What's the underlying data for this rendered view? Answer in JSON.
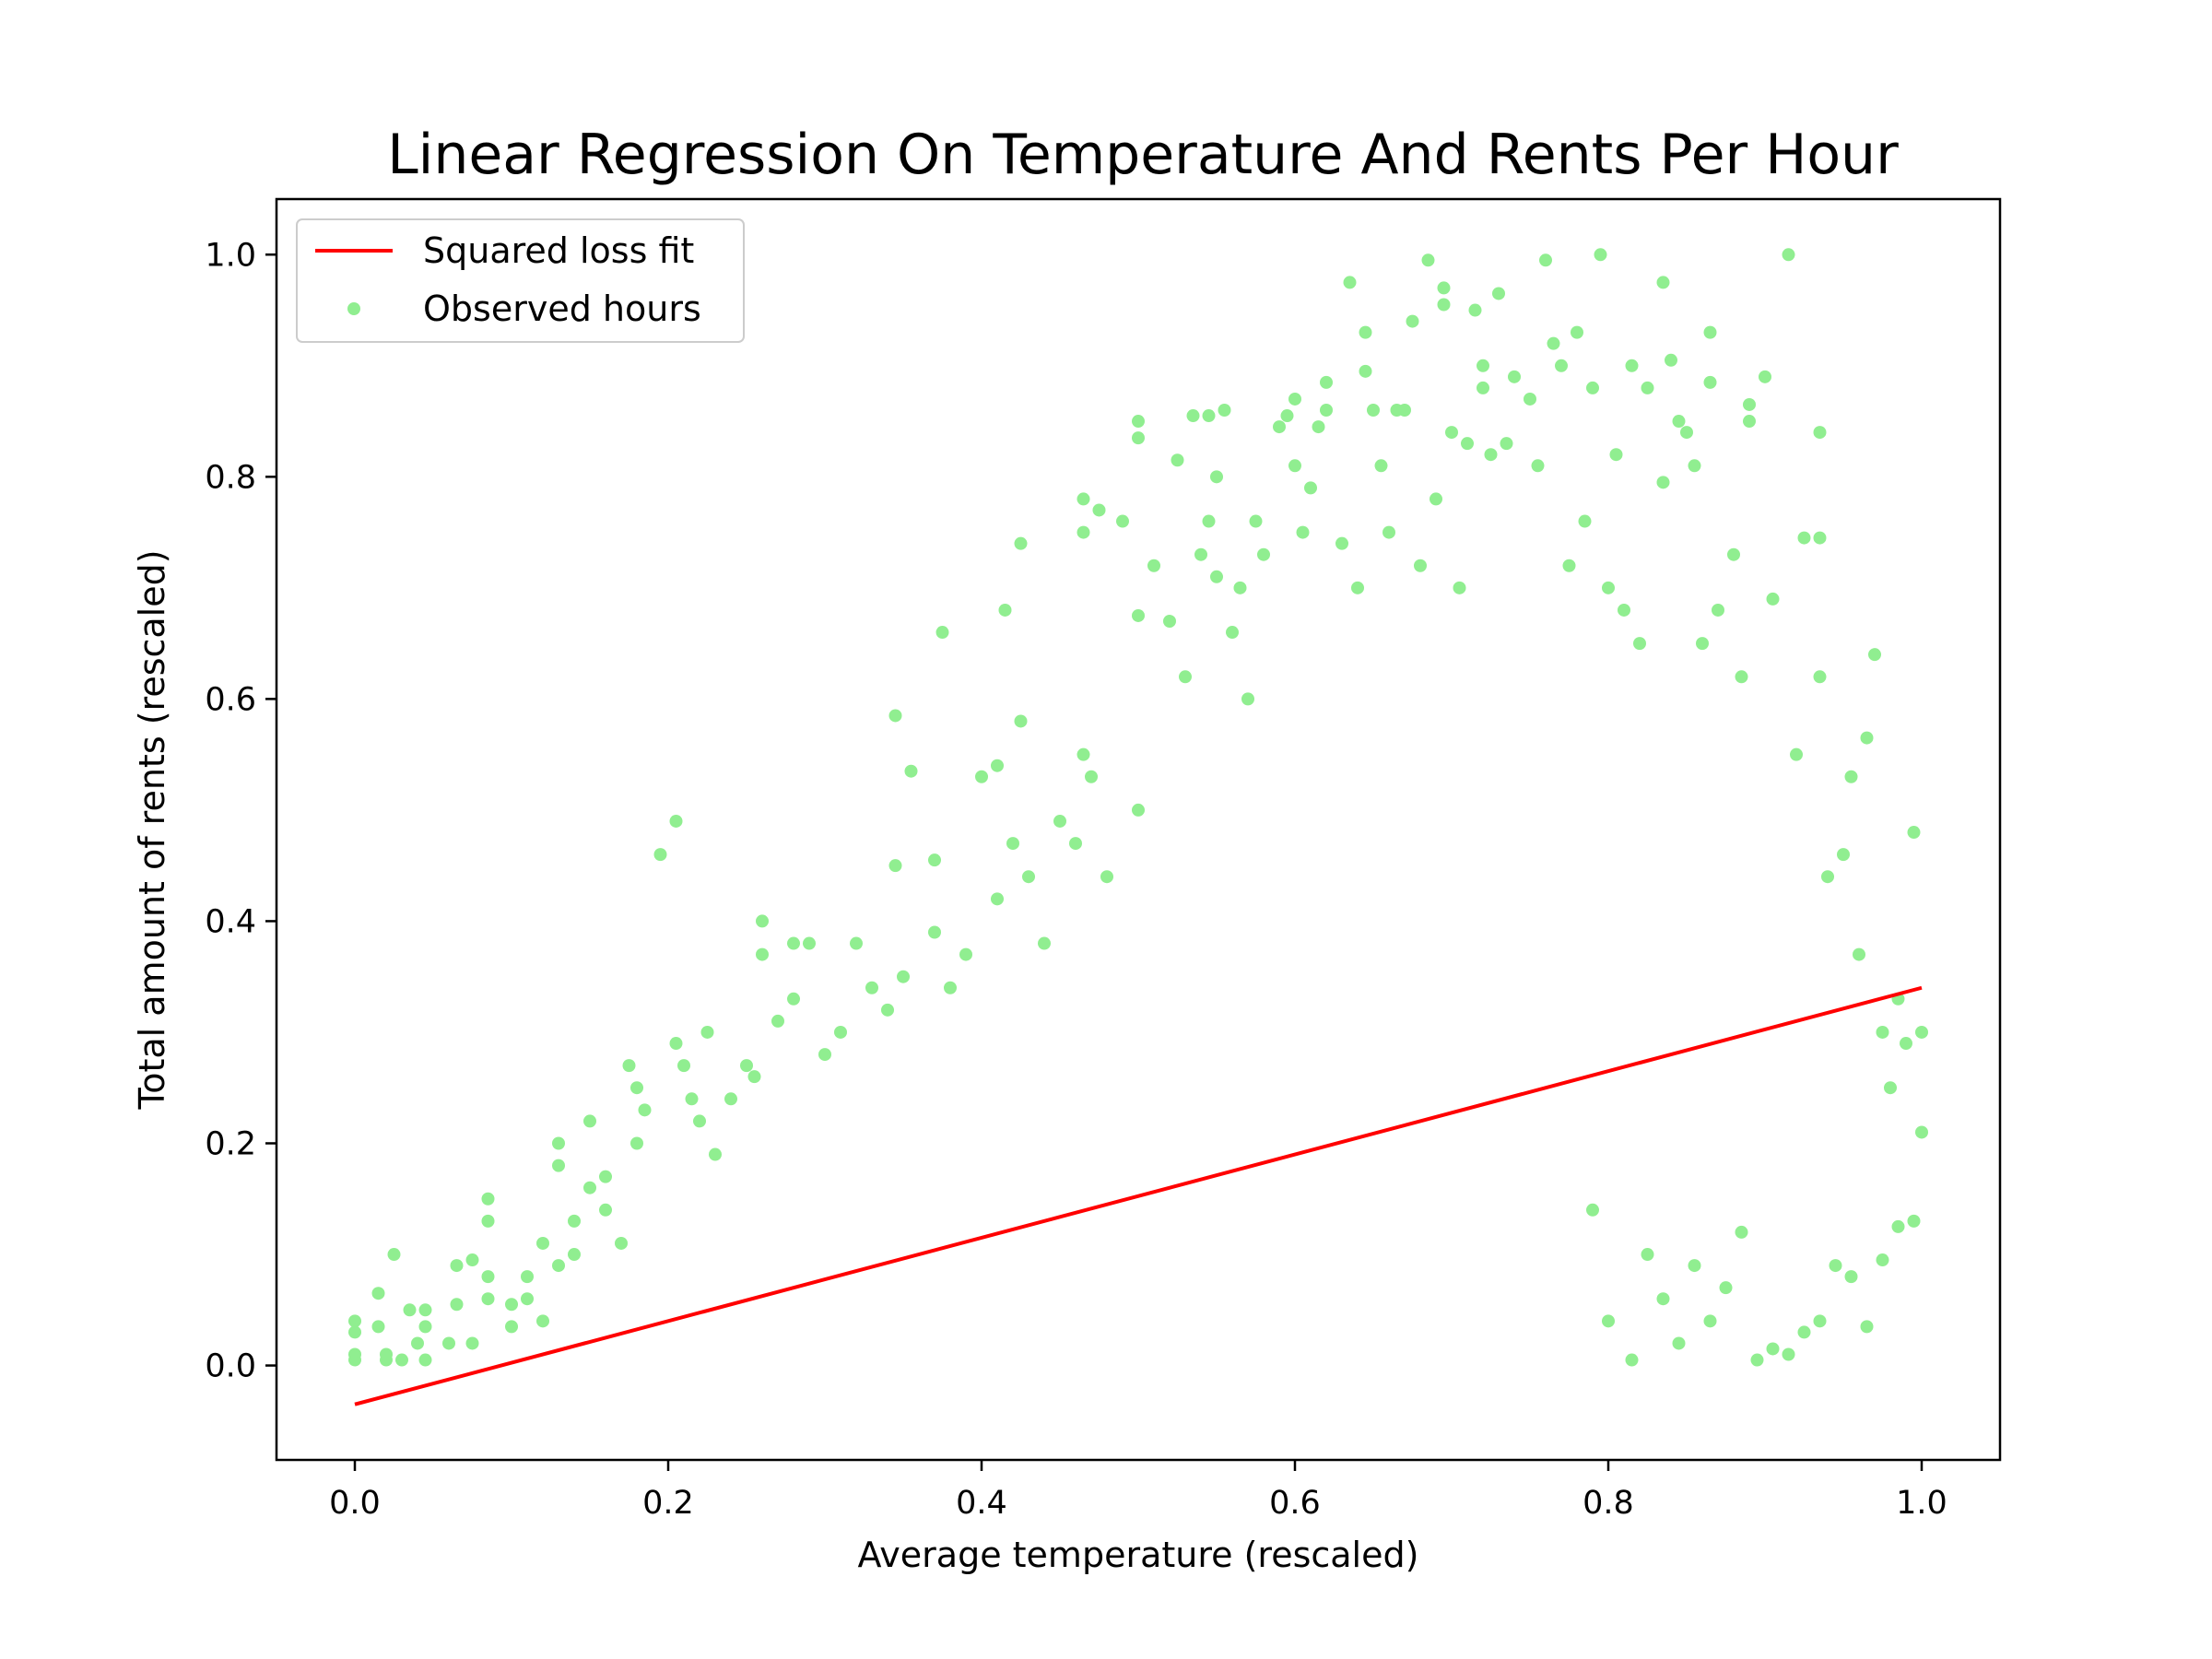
{
  "chart_data": {
    "type": "scatter",
    "title": "Linear Regression On Temperature And Rents Per Hour",
    "xlabel": "Average temperature (rescaled)",
    "ylabel": "Total amount of rents (rescaled)",
    "xlim": [
      -0.05,
      1.05
    ],
    "ylim": [
      -0.085,
      1.05
    ],
    "xticks": [
      "0.0",
      "0.2",
      "0.4",
      "0.6",
      "0.8",
      "1.0"
    ],
    "yticks": [
      "0.0",
      "0.2",
      "0.4",
      "0.6",
      "0.8",
      "1.0"
    ],
    "grid": false,
    "legend_position": "top-left",
    "colors": {
      "fit": "#ff0000",
      "points": "#90ee90"
    },
    "series": [
      {
        "name": "Squared loss fit",
        "kind": "line",
        "x": [
          0.0,
          1.0
        ],
        "y": [
          -0.035,
          0.34
        ]
      },
      {
        "name": "Observed hours",
        "kind": "scatter",
        "points": [
          [
            0.0,
            0.04
          ],
          [
            0.0,
            0.03
          ],
          [
            0.0,
            0.01
          ],
          [
            0.0,
            0.005
          ],
          [
            0.015,
            0.065
          ],
          [
            0.015,
            0.035
          ],
          [
            0.02,
            0.005
          ],
          [
            0.02,
            0.01
          ],
          [
            0.025,
            0.1
          ],
          [
            0.03,
            0.005
          ],
          [
            0.035,
            0.05
          ],
          [
            0.04,
            0.02
          ],
          [
            0.045,
            0.05
          ],
          [
            0.045,
            0.035
          ],
          [
            0.045,
            0.005
          ],
          [
            0.06,
            0.02
          ],
          [
            0.065,
            0.09
          ],
          [
            0.065,
            0.055
          ],
          [
            0.075,
            0.095
          ],
          [
            0.075,
            0.02
          ],
          [
            0.085,
            0.15
          ],
          [
            0.085,
            0.13
          ],
          [
            0.085,
            0.08
          ],
          [
            0.085,
            0.06
          ],
          [
            0.1,
            0.055
          ],
          [
            0.1,
            0.035
          ],
          [
            0.11,
            0.08
          ],
          [
            0.11,
            0.06
          ],
          [
            0.12,
            0.11
          ],
          [
            0.12,
            0.04
          ],
          [
            0.13,
            0.2
          ],
          [
            0.13,
            0.18
          ],
          [
            0.13,
            0.09
          ],
          [
            0.14,
            0.13
          ],
          [
            0.14,
            0.1
          ],
          [
            0.15,
            0.22
          ],
          [
            0.15,
            0.16
          ],
          [
            0.16,
            0.17
          ],
          [
            0.16,
            0.14
          ],
          [
            0.17,
            0.11
          ],
          [
            0.175,
            0.27
          ],
          [
            0.18,
            0.25
          ],
          [
            0.18,
            0.2
          ],
          [
            0.185,
            0.23
          ],
          [
            0.195,
            0.46
          ],
          [
            0.205,
            0.49
          ],
          [
            0.205,
            0.29
          ],
          [
            0.21,
            0.27
          ],
          [
            0.215,
            0.24
          ],
          [
            0.22,
            0.22
          ],
          [
            0.225,
            0.3
          ],
          [
            0.23,
            0.19
          ],
          [
            0.24,
            0.24
          ],
          [
            0.25,
            0.27
          ],
          [
            0.255,
            0.26
          ],
          [
            0.26,
            0.4
          ],
          [
            0.26,
            0.37
          ],
          [
            0.27,
            0.31
          ],
          [
            0.28,
            0.33
          ],
          [
            0.28,
            0.38
          ],
          [
            0.29,
            0.38
          ],
          [
            0.3,
            0.28
          ],
          [
            0.31,
            0.3
          ],
          [
            0.32,
            0.38
          ],
          [
            0.33,
            0.34
          ],
          [
            0.34,
            0.32
          ],
          [
            0.345,
            0.585
          ],
          [
            0.345,
            0.45
          ],
          [
            0.35,
            0.35
          ],
          [
            0.355,
            0.535
          ],
          [
            0.37,
            0.455
          ],
          [
            0.37,
            0.39
          ],
          [
            0.375,
            0.66
          ],
          [
            0.38,
            0.34
          ],
          [
            0.39,
            0.37
          ],
          [
            0.4,
            0.53
          ],
          [
            0.41,
            0.54
          ],
          [
            0.41,
            0.42
          ],
          [
            0.415,
            0.68
          ],
          [
            0.42,
            0.47
          ],
          [
            0.425,
            0.74
          ],
          [
            0.425,
            0.58
          ],
          [
            0.43,
            0.44
          ],
          [
            0.44,
            0.38
          ],
          [
            0.45,
            0.49
          ],
          [
            0.46,
            0.47
          ],
          [
            0.465,
            0.55
          ],
          [
            0.465,
            0.78
          ],
          [
            0.465,
            0.75
          ],
          [
            0.47,
            0.53
          ],
          [
            0.475,
            0.77
          ],
          [
            0.48,
            0.44
          ],
          [
            0.49,
            0.76
          ],
          [
            0.5,
            0.85
          ],
          [
            0.5,
            0.835
          ],
          [
            0.5,
            0.675
          ],
          [
            0.5,
            0.5
          ],
          [
            0.51,
            0.72
          ],
          [
            0.52,
            0.67
          ],
          [
            0.525,
            0.815
          ],
          [
            0.53,
            0.62
          ],
          [
            0.535,
            0.855
          ],
          [
            0.54,
            0.73
          ],
          [
            0.545,
            0.855
          ],
          [
            0.545,
            0.76
          ],
          [
            0.55,
            0.8
          ],
          [
            0.55,
            0.71
          ],
          [
            0.555,
            0.86
          ],
          [
            0.56,
            0.66
          ],
          [
            0.565,
            0.7
          ],
          [
            0.57,
            0.6
          ],
          [
            0.575,
            0.76
          ],
          [
            0.58,
            0.73
          ],
          [
            0.59,
            0.845
          ],
          [
            0.595,
            0.855
          ],
          [
            0.6,
            0.81
          ],
          [
            0.6,
            0.87
          ],
          [
            0.605,
            0.75
          ],
          [
            0.61,
            0.79
          ],
          [
            0.615,
            0.845
          ],
          [
            0.62,
            0.885
          ],
          [
            0.62,
            0.86
          ],
          [
            0.63,
            0.74
          ],
          [
            0.635,
            0.975
          ],
          [
            0.64,
            0.7
          ],
          [
            0.645,
            0.93
          ],
          [
            0.645,
            0.895
          ],
          [
            0.65,
            0.86
          ],
          [
            0.655,
            0.81
          ],
          [
            0.66,
            0.75
          ],
          [
            0.665,
            0.86
          ],
          [
            0.67,
            0.86
          ],
          [
            0.675,
            0.94
          ],
          [
            0.68,
            0.72
          ],
          [
            0.685,
            0.995
          ],
          [
            0.69,
            0.78
          ],
          [
            0.695,
            0.97
          ],
          [
            0.695,
            0.955
          ],
          [
            0.7,
            0.84
          ],
          [
            0.705,
            0.7
          ],
          [
            0.71,
            0.83
          ],
          [
            0.715,
            0.95
          ],
          [
            0.72,
            0.9
          ],
          [
            0.72,
            0.88
          ],
          [
            0.725,
            0.82
          ],
          [
            0.73,
            0.965
          ],
          [
            0.735,
            0.83
          ],
          [
            0.74,
            0.89
          ],
          [
            0.75,
            0.87
          ],
          [
            0.755,
            0.81
          ],
          [
            0.76,
            0.995
          ],
          [
            0.765,
            0.92
          ],
          [
            0.77,
            0.9
          ],
          [
            0.775,
            0.72
          ],
          [
            0.78,
            0.93
          ],
          [
            0.785,
            0.76
          ],
          [
            0.79,
            0.88
          ],
          [
            0.795,
            1.0
          ],
          [
            0.8,
            0.7
          ],
          [
            0.805,
            0.82
          ],
          [
            0.81,
            0.68
          ],
          [
            0.815,
            0.9
          ],
          [
            0.82,
            0.65
          ],
          [
            0.825,
            0.88
          ],
          [
            0.835,
            0.975
          ],
          [
            0.835,
            0.795
          ],
          [
            0.84,
            0.905
          ],
          [
            0.845,
            0.85
          ],
          [
            0.85,
            0.84
          ],
          [
            0.855,
            0.81
          ],
          [
            0.86,
            0.65
          ],
          [
            0.865,
            0.93
          ],
          [
            0.865,
            0.885
          ],
          [
            0.87,
            0.68
          ],
          [
            0.88,
            0.73
          ],
          [
            0.885,
            0.62
          ],
          [
            0.89,
            0.865
          ],
          [
            0.89,
            0.85
          ],
          [
            0.9,
            0.89
          ],
          [
            0.905,
            0.69
          ],
          [
            0.915,
            1.0
          ],
          [
            0.92,
            0.55
          ],
          [
            0.925,
            0.745
          ],
          [
            0.935,
            0.745
          ],
          [
            0.935,
            0.84
          ],
          [
            0.935,
            0.62
          ],
          [
            0.94,
            0.44
          ],
          [
            0.95,
            0.46
          ],
          [
            0.955,
            0.53
          ],
          [
            0.96,
            0.37
          ],
          [
            0.965,
            0.565
          ],
          [
            0.97,
            0.64
          ],
          [
            0.975,
            0.3
          ],
          [
            0.98,
            0.25
          ],
          [
            0.985,
            0.33
          ],
          [
            0.99,
            0.29
          ],
          [
            0.995,
            0.48
          ],
          [
            1.0,
            0.3
          ],
          [
            1.0,
            0.21
          ],
          [
            0.995,
            0.13
          ],
          [
            0.985,
            0.125
          ],
          [
            0.975,
            0.095
          ],
          [
            0.965,
            0.035
          ],
          [
            0.955,
            0.08
          ],
          [
            0.945,
            0.09
          ],
          [
            0.935,
            0.04
          ],
          [
            0.925,
            0.03
          ],
          [
            0.915,
            0.01
          ],
          [
            0.905,
            0.015
          ],
          [
            0.895,
            0.005
          ],
          [
            0.885,
            0.12
          ],
          [
            0.875,
            0.07
          ],
          [
            0.865,
            0.04
          ],
          [
            0.855,
            0.09
          ],
          [
            0.845,
            0.02
          ],
          [
            0.835,
            0.06
          ],
          [
            0.825,
            0.1
          ],
          [
            0.815,
            0.005
          ],
          [
            0.8,
            0.04
          ],
          [
            0.79,
            0.14
          ]
        ]
      }
    ]
  }
}
